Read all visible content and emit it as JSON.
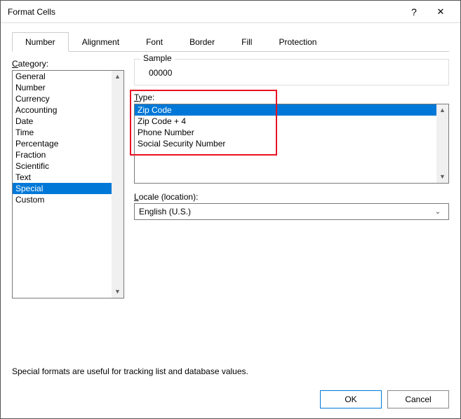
{
  "window": {
    "title": "Format Cells",
    "help_glyph": "?",
    "close_glyph": "✕"
  },
  "tabs": [
    {
      "label": "Number",
      "active": true
    },
    {
      "label": "Alignment",
      "active": false
    },
    {
      "label": "Font",
      "active": false
    },
    {
      "label": "Border",
      "active": false
    },
    {
      "label": "Fill",
      "active": false
    },
    {
      "label": "Protection",
      "active": false
    }
  ],
  "category": {
    "label_prefix": "C",
    "label_rest": "ategory:",
    "items": [
      "General",
      "Number",
      "Currency",
      "Accounting",
      "Date",
      "Time",
      "Percentage",
      "Fraction",
      "Scientific",
      "Text",
      "Special",
      "Custom"
    ],
    "selected": "Special"
  },
  "sample": {
    "legend": "Sample",
    "value": "00000"
  },
  "type": {
    "label_prefix": "T",
    "label_rest": "ype:",
    "items": [
      "Zip Code",
      "Zip Code + 4",
      "Phone Number",
      "Social Security Number"
    ],
    "selected": "Zip Code"
  },
  "locale": {
    "label_prefix": "L",
    "label_rest": "ocale (location):",
    "value": "English (U.S.)"
  },
  "description": "Special formats are useful for tracking list and database values.",
  "buttons": {
    "ok": "OK",
    "cancel": "Cancel"
  },
  "colors": {
    "selection": "#0078d7",
    "highlight": "#e81123"
  }
}
